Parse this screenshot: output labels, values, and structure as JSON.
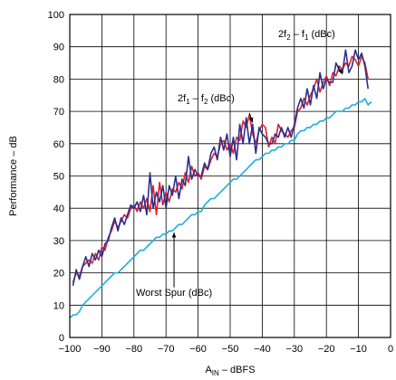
{
  "chart_data": {
    "type": "line",
    "xlabel": {
      "main": "A",
      "sub": "IN",
      "rest": " – dBFS"
    },
    "ylabel": "Performance – dB",
    "xlim": [
      -100,
      0
    ],
    "ylim": [
      0,
      100
    ],
    "xticks": [
      -100,
      -90,
      -80,
      -70,
      -60,
      -50,
      -40,
      -30,
      -20,
      -10,
      0
    ],
    "yticks": [
      0,
      10,
      20,
      30,
      40,
      50,
      60,
      70,
      80,
      90,
      100
    ],
    "xtick_labels": [
      "−100",
      "−90",
      "−80",
      "−70",
      "−60",
      "−50",
      "−40",
      "−30",
      "−20",
      "−10",
      "0"
    ],
    "ytick_labels": [
      "0",
      "10",
      "20",
      "30",
      "40",
      "50",
      "60",
      "70",
      "80",
      "90",
      "100"
    ],
    "grid": true,
    "colors": {
      "two_f2_minus_f1": "#2b2f8f",
      "two_f1_minus_f2": "#e0202a",
      "worst_spur": "#1aaee0"
    },
    "annotations": {
      "two_f2_minus_f1": {
        "a": "2f",
        "s1": "2",
        "b": " – f",
        "s2": "1",
        "c": " (dBc)"
      },
      "two_f1_minus_f2": {
        "a": "2f",
        "s1": "1",
        "b": " – f",
        "s2": "2",
        "c": " (dBc)"
      },
      "worst_spur": "Worst Spur (dBc)"
    },
    "series": [
      {
        "key": "two_f1_minus_f2",
        "x": [
          -99,
          -98,
          -97,
          -96,
          -95,
          -94,
          -93,
          -92,
          -91,
          -90,
          -89,
          -88,
          -87,
          -86,
          -85,
          -84,
          -83,
          -82,
          -81,
          -80,
          -79,
          -78,
          -77,
          -76,
          -75,
          -74,
          -73,
          -72,
          -71,
          -70,
          -69,
          -68,
          -67,
          -66,
          -65,
          -64,
          -63,
          -62,
          -61,
          -60,
          -59,
          -58,
          -57,
          -56,
          -55,
          -54,
          -53,
          -52,
          -51,
          -50,
          -49,
          -48,
          -47,
          -46,
          -45,
          -44,
          -43,
          -42,
          -41,
          -40,
          -39,
          -38,
          -37,
          -36,
          -35,
          -34,
          -33,
          -32,
          -31,
          -30,
          -29,
          -28,
          -27,
          -26,
          -25,
          -24,
          -23,
          -22,
          -21,
          -20,
          -19,
          -18,
          -17,
          -16,
          -15,
          -14,
          -13,
          -12,
          -11,
          -10,
          -9,
          -8,
          -7
        ],
        "y": [
          17,
          20,
          19,
          22,
          23,
          24,
          23,
          26,
          24,
          28,
          27,
          31,
          33,
          36,
          34,
          36,
          38,
          37,
          40,
          41,
          39,
          42,
          40,
          43,
          39,
          47,
          38,
          48,
          41,
          45,
          42,
          46,
          45,
          48,
          46,
          51,
          48,
          53,
          50,
          51,
          49,
          53,
          52,
          55,
          57,
          56,
          60,
          61,
          58,
          60,
          57,
          62,
          61,
          67,
          65,
          69,
          63,
          60,
          64,
          66,
          65,
          59,
          62,
          60,
          66,
          64,
          63,
          62,
          64,
          65,
          70,
          71,
          74,
          72,
          75,
          77,
          80,
          76,
          79,
          81,
          78,
          82,
          81,
          84,
          83,
          85,
          84,
          87,
          86,
          84,
          87,
          85,
          80
        ]
      },
      {
        "key": "two_f2_minus_f1",
        "x": [
          -99,
          -98,
          -97,
          -96,
          -95,
          -94,
          -93,
          -92,
          -91,
          -90,
          -89,
          -88,
          -87,
          -86,
          -85,
          -84,
          -83,
          -82,
          -81,
          -80,
          -79,
          -78,
          -77,
          -76,
          -75,
          -74,
          -73,
          -72,
          -71,
          -70,
          -69,
          -68,
          -67,
          -66,
          -65,
          -64,
          -63,
          -62,
          -61,
          -60,
          -59,
          -58,
          -57,
          -56,
          -55,
          -54,
          -53,
          -52,
          -51,
          -50,
          -49,
          -48,
          -47,
          -46,
          -45,
          -44,
          -43,
          -42,
          -41,
          -40,
          -39,
          -38,
          -37,
          -36,
          -35,
          -34,
          -33,
          -32,
          -31,
          -30,
          -29,
          -28,
          -27,
          -26,
          -25,
          -24,
          -23,
          -22,
          -21,
          -20,
          -19,
          -18,
          -17,
          -16,
          -15,
          -14,
          -13,
          -12,
          -11,
          -10,
          -9,
          -8,
          -7
        ],
        "y": [
          16,
          21,
          18,
          22,
          25,
          22,
          26,
          24,
          27,
          25,
          29,
          30,
          34,
          37,
          33,
          37,
          35,
          38,
          41,
          40,
          42,
          39,
          44,
          38,
          51,
          40,
          45,
          42,
          47,
          40,
          47,
          44,
          50,
          43,
          49,
          47,
          56,
          49,
          52,
          50,
          50,
          54,
          52,
          57,
          59,
          55,
          62,
          58,
          63,
          56,
          62,
          55,
          66,
          60,
          68,
          60,
          66,
          57,
          65,
          63,
          62,
          60,
          60,
          63,
          62,
          65,
          62,
          65,
          62,
          66,
          71,
          74,
          71,
          77,
          72,
          78,
          74,
          82,
          77,
          80,
          79,
          79,
          85,
          83,
          82,
          89,
          82,
          84,
          89,
          86,
          88,
          84,
          77
        ]
      },
      {
        "key": "worst_spur",
        "x": [
          -100,
          -99,
          -98,
          -97,
          -96,
          -95,
          -94,
          -93,
          -92,
          -91,
          -90,
          -89,
          -88,
          -87,
          -86,
          -85,
          -84,
          -83,
          -82,
          -81,
          -80,
          -79,
          -78,
          -77,
          -76,
          -75,
          -74,
          -73,
          -72,
          -71,
          -70,
          -69,
          -68,
          -67,
          -66,
          -65,
          -64,
          -63,
          -62,
          -61,
          -60,
          -59,
          -58,
          -57,
          -56,
          -55,
          -54,
          -53,
          -52,
          -51,
          -50,
          -49,
          -48,
          -47,
          -46,
          -45,
          -44,
          -43,
          -42,
          -41,
          -40,
          -39,
          -38,
          -37,
          -36,
          -35,
          -34,
          -33,
          -32,
          -31,
          -30,
          -29,
          -28,
          -27,
          -26,
          -25,
          -24,
          -23,
          -22,
          -21,
          -20,
          -19,
          -18,
          -17,
          -16,
          -15,
          -14,
          -13,
          -12,
          -11,
          -10,
          -9,
          -8,
          -7,
          -6
        ],
        "y": [
          6,
          7,
          7,
          8,
          10,
          11,
          12,
          13,
          14,
          15,
          16,
          17,
          18,
          19,
          20,
          20,
          21,
          22,
          23,
          24,
          25,
          26,
          27,
          27,
          28,
          29,
          30,
          31,
          31,
          32,
          32,
          33,
          33,
          34,
          35,
          35,
          36,
          37,
          38,
          38,
          39,
          39,
          41,
          42,
          43,
          43,
          44,
          45,
          46,
          47,
          48,
          49,
          49,
          50,
          51,
          52,
          53,
          54,
          55,
          55,
          56,
          57,
          57,
          58,
          58,
          59,
          59,
          60,
          60,
          61,
          61,
          63,
          64,
          64,
          65,
          65,
          66,
          66,
          67,
          67,
          68,
          68,
          69,
          70,
          70,
          70,
          71,
          71,
          72,
          72,
          73,
          73,
          74,
          72,
          73
        ]
      }
    ]
  }
}
